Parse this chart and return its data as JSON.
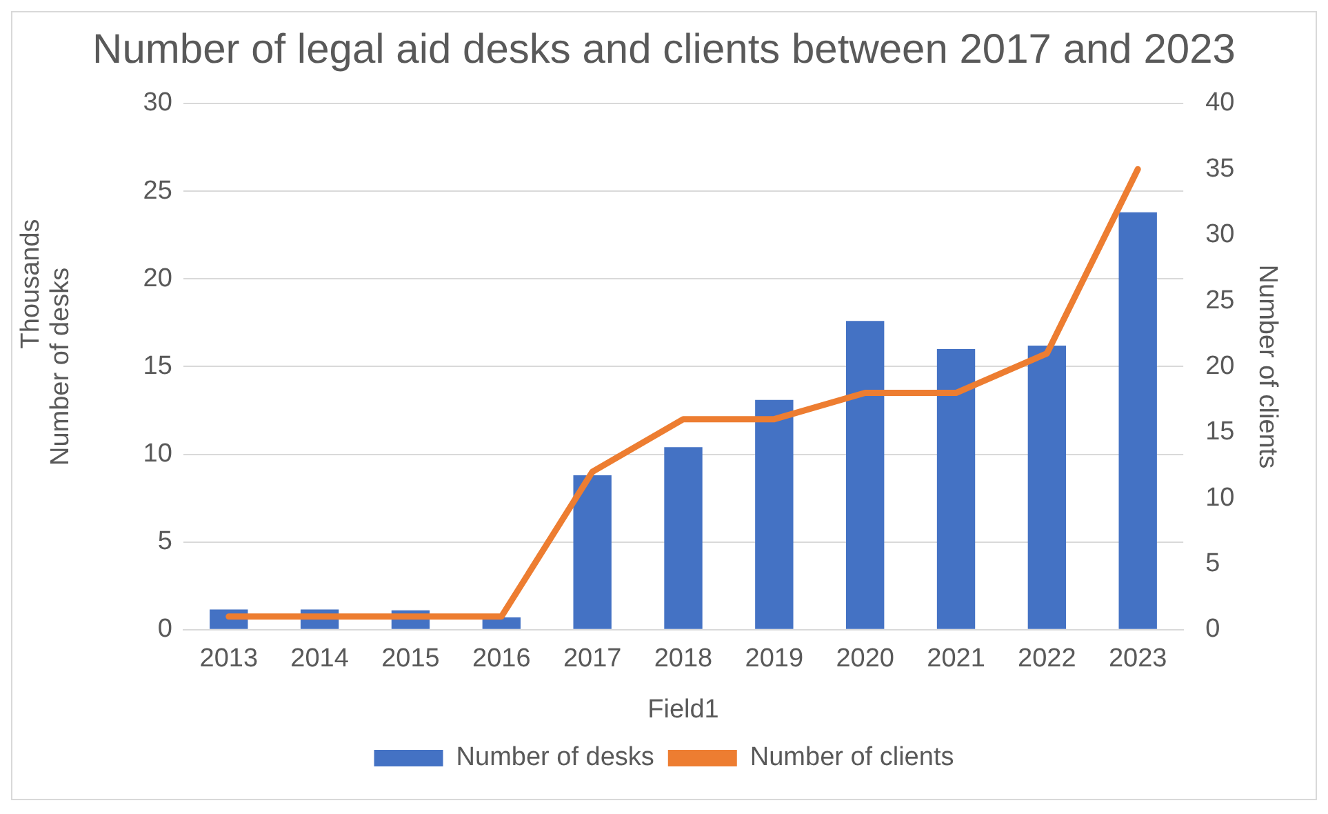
{
  "chart_data": {
    "type": "bar",
    "title": "Number of legal aid desks and clients between 2017 and 2023",
    "xlabel": "Field1",
    "ylabel": "Number of desks",
    "y2label": "Number of clients",
    "annotations": [
      "Thousands"
    ],
    "categories": [
      "2013",
      "2014",
      "2015",
      "2016",
      "2017",
      "2018",
      "2019",
      "2020",
      "2021",
      "2022",
      "2023"
    ],
    "series": [
      {
        "name": "Number of desks",
        "color": "#4472c4",
        "values": [
          1.15,
          1.15,
          1.1,
          0.7,
          8.8,
          10.4,
          13.1,
          17.6,
          16.0,
          16.2,
          23.8
        ]
      },
      {
        "name": "Number of clients",
        "type": "line",
        "axis": "y2",
        "color": "#ed7d31",
        "values": [
          1,
          1,
          1,
          1,
          12,
          16,
          16,
          18,
          18,
          21,
          35
        ]
      }
    ],
    "ylim": [
      0,
      30
    ],
    "yticks": [
      0,
      5,
      10,
      15,
      20,
      25,
      30
    ],
    "y2lim": [
      0,
      40
    ],
    "y2ticks": [
      0,
      5,
      10,
      15,
      20,
      25,
      30,
      35,
      40
    ],
    "grid": "y",
    "legend": "bottom",
    "marker": "none"
  }
}
